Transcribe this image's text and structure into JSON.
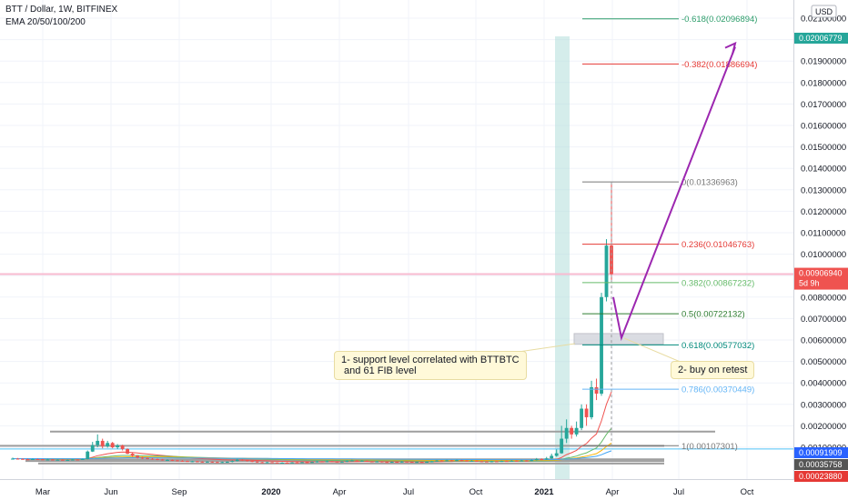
{
  "header": {
    "symbol_line": "BTT / Dollar, 1W, BITFINEX",
    "indicator_line": "EMA 20/50/100/200",
    "currency_badge": "USD"
  },
  "chart_data": {
    "type": "candlestick",
    "x_ticks": [
      "Mar",
      "Jun",
      "Sep",
      "2020",
      "Apr",
      "Jul",
      "Oct",
      "2021",
      "Apr",
      "Jul",
      "Oct"
    ],
    "y_ticks": [
      "0.02100000",
      "0.02000000",
      "0.01900000",
      "0.01800000",
      "0.01700000",
      "0.01600000",
      "0.01500000",
      "0.01400000",
      "0.01300000",
      "0.01200000",
      "0.01100000",
      "0.01000000",
      "0.00900000",
      "0.00800000",
      "0.00700000",
      "0.00600000",
      "0.00500000",
      "0.00400000",
      "0.00300000",
      "0.00200000",
      "0.00100000"
    ],
    "ylim": [
      0.0002,
      0.0212
    ],
    "price_labels": [
      {
        "value": 0.02006779,
        "text": "0.02006779",
        "color": "#26a69a"
      },
      {
        "value": 0.0090694,
        "text": "0.00906940",
        "sub": "5d 9h",
        "color": "#ef5350"
      },
      {
        "value": 0.00091909,
        "text": "0.00091909",
        "color": "#2962ff"
      },
      {
        "value": 0.00035758,
        "text": "0.00035758",
        "color": "#555555"
      },
      {
        "value": 0.0002388,
        "text": "0.00023880",
        "color": "#e53935"
      }
    ],
    "fib_levels": [
      {
        "ratio": "-0.618",
        "value": 0.02096894,
        "text": "-0.618(0.02096894)",
        "color": "#2e9e6b"
      },
      {
        "ratio": "-0.382",
        "value": 0.01886694,
        "text": "-0.382(0.01886694)",
        "color": "#e53935"
      },
      {
        "ratio": "0",
        "value": 0.01336963,
        "text": "0(0.01336963)",
        "color": "#777777"
      },
      {
        "ratio": "0.236",
        "value": 0.01046763,
        "text": "0.236(0.01046763)",
        "color": "#e53935"
      },
      {
        "ratio": "0.382",
        "value": 0.00867232,
        "text": "0.382(0.00867232)",
        "color": "#66bb6a"
      },
      {
        "ratio": "0.5",
        "value": 0.00722132,
        "text": "0.5(0.00722132)",
        "color": "#2e7d32"
      },
      {
        "ratio": "0.618",
        "value": 0.00577032,
        "text": "0.618(0.00577032)",
        "color": "#00897b"
      },
      {
        "ratio": "0.786",
        "value": 0.00370449,
        "text": "0.786(0.00370449)",
        "color": "#64b5f6"
      },
      {
        "ratio": "1",
        "value": 0.00107301,
        "text": "1(0.00107301)",
        "color": "#777777"
      }
    ],
    "annotations": [
      {
        "id": "support-note",
        "text": "1- support level correlated with BTTBTC\n and 61 FIB level"
      },
      {
        "id": "retest-note",
        "text": "2- buy on retest"
      }
    ],
    "support_zone": {
      "low": 0.0058,
      "high": 0.0063
    },
    "projection_path": [
      0.008,
      0.0061,
      0.02
    ],
    "horizontal_levels": [
      0.00173,
      0.00107,
      0.00044,
      0.00036,
      0.00024
    ],
    "candles": [
      [
        0.00045,
        0.00047,
        0.00052,
        0.00043
      ],
      [
        0.00047,
        0.00046,
        0.0005,
        0.00043
      ],
      [
        0.00046,
        0.00044,
        0.00048,
        0.00042
      ],
      [
        0.00044,
        0.00043,
        0.00047,
        0.0004
      ],
      [
        0.00043,
        0.00045,
        0.00048,
        0.00041
      ],
      [
        0.00045,
        0.00044,
        0.00047,
        0.00042
      ],
      [
        0.00044,
        0.00042,
        0.00046,
        0.0004
      ],
      [
        0.00042,
        0.00043,
        0.00046,
        0.0004
      ],
      [
        0.00043,
        0.00041,
        0.00045,
        0.00039
      ],
      [
        0.00041,
        0.00042,
        0.00044,
        0.00039
      ],
      [
        0.00042,
        0.0004,
        0.00044,
        0.00038
      ],
      [
        0.0004,
        0.00041,
        0.00043,
        0.00038
      ],
      [
        0.00041,
        0.00043,
        0.00045,
        0.00039
      ],
      [
        0.00043,
        0.00042,
        0.00045,
        0.0004
      ],
      [
        0.00042,
        0.00045,
        0.00047,
        0.00041
      ],
      [
        0.00045,
        0.0008,
        0.00085,
        0.00044
      ],
      [
        0.0008,
        0.0011,
        0.00125,
        0.00078
      ],
      [
        0.0011,
        0.0013,
        0.0016,
        0.001
      ],
      [
        0.0013,
        0.00105,
        0.0014,
        0.00095
      ],
      [
        0.00105,
        0.0012,
        0.0013,
        0.00098
      ],
      [
        0.0012,
        0.001,
        0.00125,
        0.00095
      ],
      [
        0.001,
        0.00108,
        0.00115,
        0.00092
      ],
      [
        0.00108,
        0.00092,
        0.00112,
        0.00085
      ],
      [
        0.00092,
        0.0007,
        0.00095,
        0.00068
      ],
      [
        0.0007,
        0.0006,
        0.00075,
        0.00056
      ],
      [
        0.0006,
        0.00052,
        0.00064,
        0.00048
      ],
      [
        0.00052,
        0.0005,
        0.00056,
        0.00046
      ],
      [
        0.0005,
        0.00047,
        0.00053,
        0.00044
      ],
      [
        0.00047,
        0.00045,
        0.0005,
        0.00042
      ],
      [
        0.00045,
        0.00043,
        0.00048,
        0.0004
      ],
      [
        0.00043,
        0.0004,
        0.00046,
        0.00038
      ],
      [
        0.0004,
        0.00041,
        0.00044,
        0.00037
      ],
      [
        0.00041,
        0.00039,
        0.00043,
        0.00036
      ],
      [
        0.00039,
        0.00037,
        0.00041,
        0.00034
      ],
      [
        0.00037,
        0.00036,
        0.0004,
        0.00033
      ],
      [
        0.00036,
        0.00034,
        0.00038,
        0.00032
      ],
      [
        0.00034,
        0.00035,
        0.00037,
        0.00031
      ],
      [
        0.00035,
        0.00033,
        0.00037,
        0.0003
      ],
      [
        0.00033,
        0.00032,
        0.00035,
        0.00029
      ],
      [
        0.00032,
        0.00033,
        0.00035,
        0.00029
      ],
      [
        0.00033,
        0.00031,
        0.00034,
        0.00028
      ],
      [
        0.00031,
        0.0003,
        0.00033,
        0.00027
      ],
      [
        0.0003,
        0.00031,
        0.00033,
        0.00027
      ],
      [
        0.00031,
        0.00032,
        0.00034,
        0.00029
      ],
      [
        0.00032,
        0.00036,
        0.00039,
        0.0003
      ],
      [
        0.00036,
        0.00042,
        0.00046,
        0.00034
      ],
      [
        0.00042,
        0.0004,
        0.00045,
        0.00036
      ],
      [
        0.0004,
        0.00036,
        0.00042,
        0.00033
      ],
      [
        0.00036,
        0.00034,
        0.00038,
        0.00031
      ],
      [
        0.00034,
        0.0003,
        0.00036,
        0.00027
      ],
      [
        0.0003,
        0.00028,
        0.00032,
        0.00025
      ],
      [
        0.00028,
        0.0003,
        0.00032,
        0.00025
      ],
      [
        0.0003,
        0.00029,
        0.00031,
        0.00026
      ],
      [
        0.00029,
        0.00026,
        0.0003,
        0.00024
      ],
      [
        0.00026,
        0.00028,
        0.0003,
        0.00024
      ],
      [
        0.00028,
        0.00027,
        0.0003,
        0.00025
      ],
      [
        0.00027,
        0.00029,
        0.00031,
        0.00025
      ],
      [
        0.00029,
        0.00028,
        0.00031,
        0.00026
      ],
      [
        0.00028,
        0.0003,
        0.00032,
        0.00026
      ],
      [
        0.0003,
        0.00029,
        0.00032,
        0.00027
      ],
      [
        0.00029,
        0.00031,
        0.00034,
        0.00027
      ],
      [
        0.00031,
        0.00034,
        0.00037,
        0.00029
      ],
      [
        0.00034,
        0.00032,
        0.00036,
        0.0003
      ],
      [
        0.00032,
        0.00035,
        0.00038,
        0.0003
      ],
      [
        0.00035,
        0.00033,
        0.00037,
        0.00031
      ],
      [
        0.00033,
        0.00031,
        0.00035,
        0.00029
      ],
      [
        0.00031,
        0.00033,
        0.00035,
        0.00029
      ],
      [
        0.00033,
        0.00036,
        0.00039,
        0.00031
      ],
      [
        0.00036,
        0.00038,
        0.00042,
        0.00034
      ],
      [
        0.00038,
        0.00035,
        0.0004,
        0.00033
      ],
      [
        0.00035,
        0.00037,
        0.0004,
        0.00033
      ],
      [
        0.00037,
        0.00034,
        0.00039,
        0.00032
      ],
      [
        0.00034,
        0.00032,
        0.00036,
        0.0003
      ],
      [
        0.00032,
        0.00034,
        0.00036,
        0.0003
      ],
      [
        0.00034,
        0.00031,
        0.00036,
        0.00029
      ],
      [
        0.00031,
        0.0003,
        0.00033,
        0.00028
      ],
      [
        0.0003,
        0.00032,
        0.00034,
        0.00028
      ],
      [
        0.00032,
        0.00031,
        0.00034,
        0.00029
      ],
      [
        0.00031,
        0.00033,
        0.00036,
        0.00029
      ],
      [
        0.00033,
        0.00032,
        0.00035,
        0.0003
      ],
      [
        0.00032,
        0.0003,
        0.00034,
        0.00028
      ],
      [
        0.0003,
        0.00031,
        0.00033,
        0.00028
      ],
      [
        0.00031,
        0.0003,
        0.00033,
        0.00028
      ],
      [
        0.0003,
        0.00032,
        0.00034,
        0.00028
      ],
      [
        0.00032,
        0.00034,
        0.00037,
        0.0003
      ],
      [
        0.00034,
        0.00038,
        0.00041,
        0.00032
      ],
      [
        0.00038,
        0.00036,
        0.0004,
        0.00034
      ],
      [
        0.00036,
        0.00039,
        0.00042,
        0.00034
      ],
      [
        0.00039,
        0.00037,
        0.00041,
        0.00035
      ],
      [
        0.00037,
        0.0004,
        0.00043,
        0.00035
      ],
      [
        0.0004,
        0.00038,
        0.00042,
        0.00036
      ],
      [
        0.00038,
        0.00036,
        0.0004,
        0.00034
      ],
      [
        0.00036,
        0.00037,
        0.0004,
        0.00034
      ],
      [
        0.00037,
        0.00035,
        0.00039,
        0.00033
      ],
      [
        0.00035,
        0.00034,
        0.00037,
        0.00032
      ],
      [
        0.00034,
        0.00033,
        0.00036,
        0.00031
      ],
      [
        0.00033,
        0.00035,
        0.00037,
        0.00031
      ],
      [
        0.00035,
        0.00034,
        0.00037,
        0.00032
      ],
      [
        0.00034,
        0.00036,
        0.00038,
        0.00032
      ],
      [
        0.00036,
        0.00035,
        0.00038,
        0.00033
      ],
      [
        0.00035,
        0.00037,
        0.0004,
        0.00033
      ],
      [
        0.00037,
        0.00036,
        0.00039,
        0.00034
      ],
      [
        0.00036,
        0.00038,
        0.00041,
        0.00034
      ],
      [
        0.00038,
        0.00037,
        0.0004,
        0.00035
      ],
      [
        0.00037,
        0.0004,
        0.00044,
        0.00035
      ],
      [
        0.0004,
        0.00045,
        0.0005,
        0.00038
      ],
      [
        0.00045,
        0.00043,
        0.00048,
        0.0004
      ],
      [
        0.00043,
        0.00048,
        0.00055,
        0.00041
      ],
      [
        0.00048,
        0.0006,
        0.0007,
        0.00046
      ],
      [
        0.0006,
        0.00072,
        0.0009,
        0.00056
      ],
      [
        0.00072,
        0.0014,
        0.002,
        0.0007
      ],
      [
        0.0014,
        0.0019,
        0.0023,
        0.0012
      ],
      [
        0.0019,
        0.0016,
        0.002,
        0.0014
      ],
      [
        0.0016,
        0.0019,
        0.0022,
        0.0015
      ],
      [
        0.0019,
        0.0028,
        0.003,
        0.0018
      ],
      [
        0.0028,
        0.0024,
        0.003,
        0.002
      ],
      [
        0.0024,
        0.0038,
        0.0041,
        0.0023
      ],
      [
        0.0038,
        0.0035,
        0.0042,
        0.0032
      ],
      [
        0.0035,
        0.008,
        0.0082,
        0.0034
      ],
      [
        0.008,
        0.0104,
        0.0107,
        0.0078
      ],
      [
        0.0104,
        0.00907,
        0.01337,
        0.0088
      ]
    ]
  }
}
